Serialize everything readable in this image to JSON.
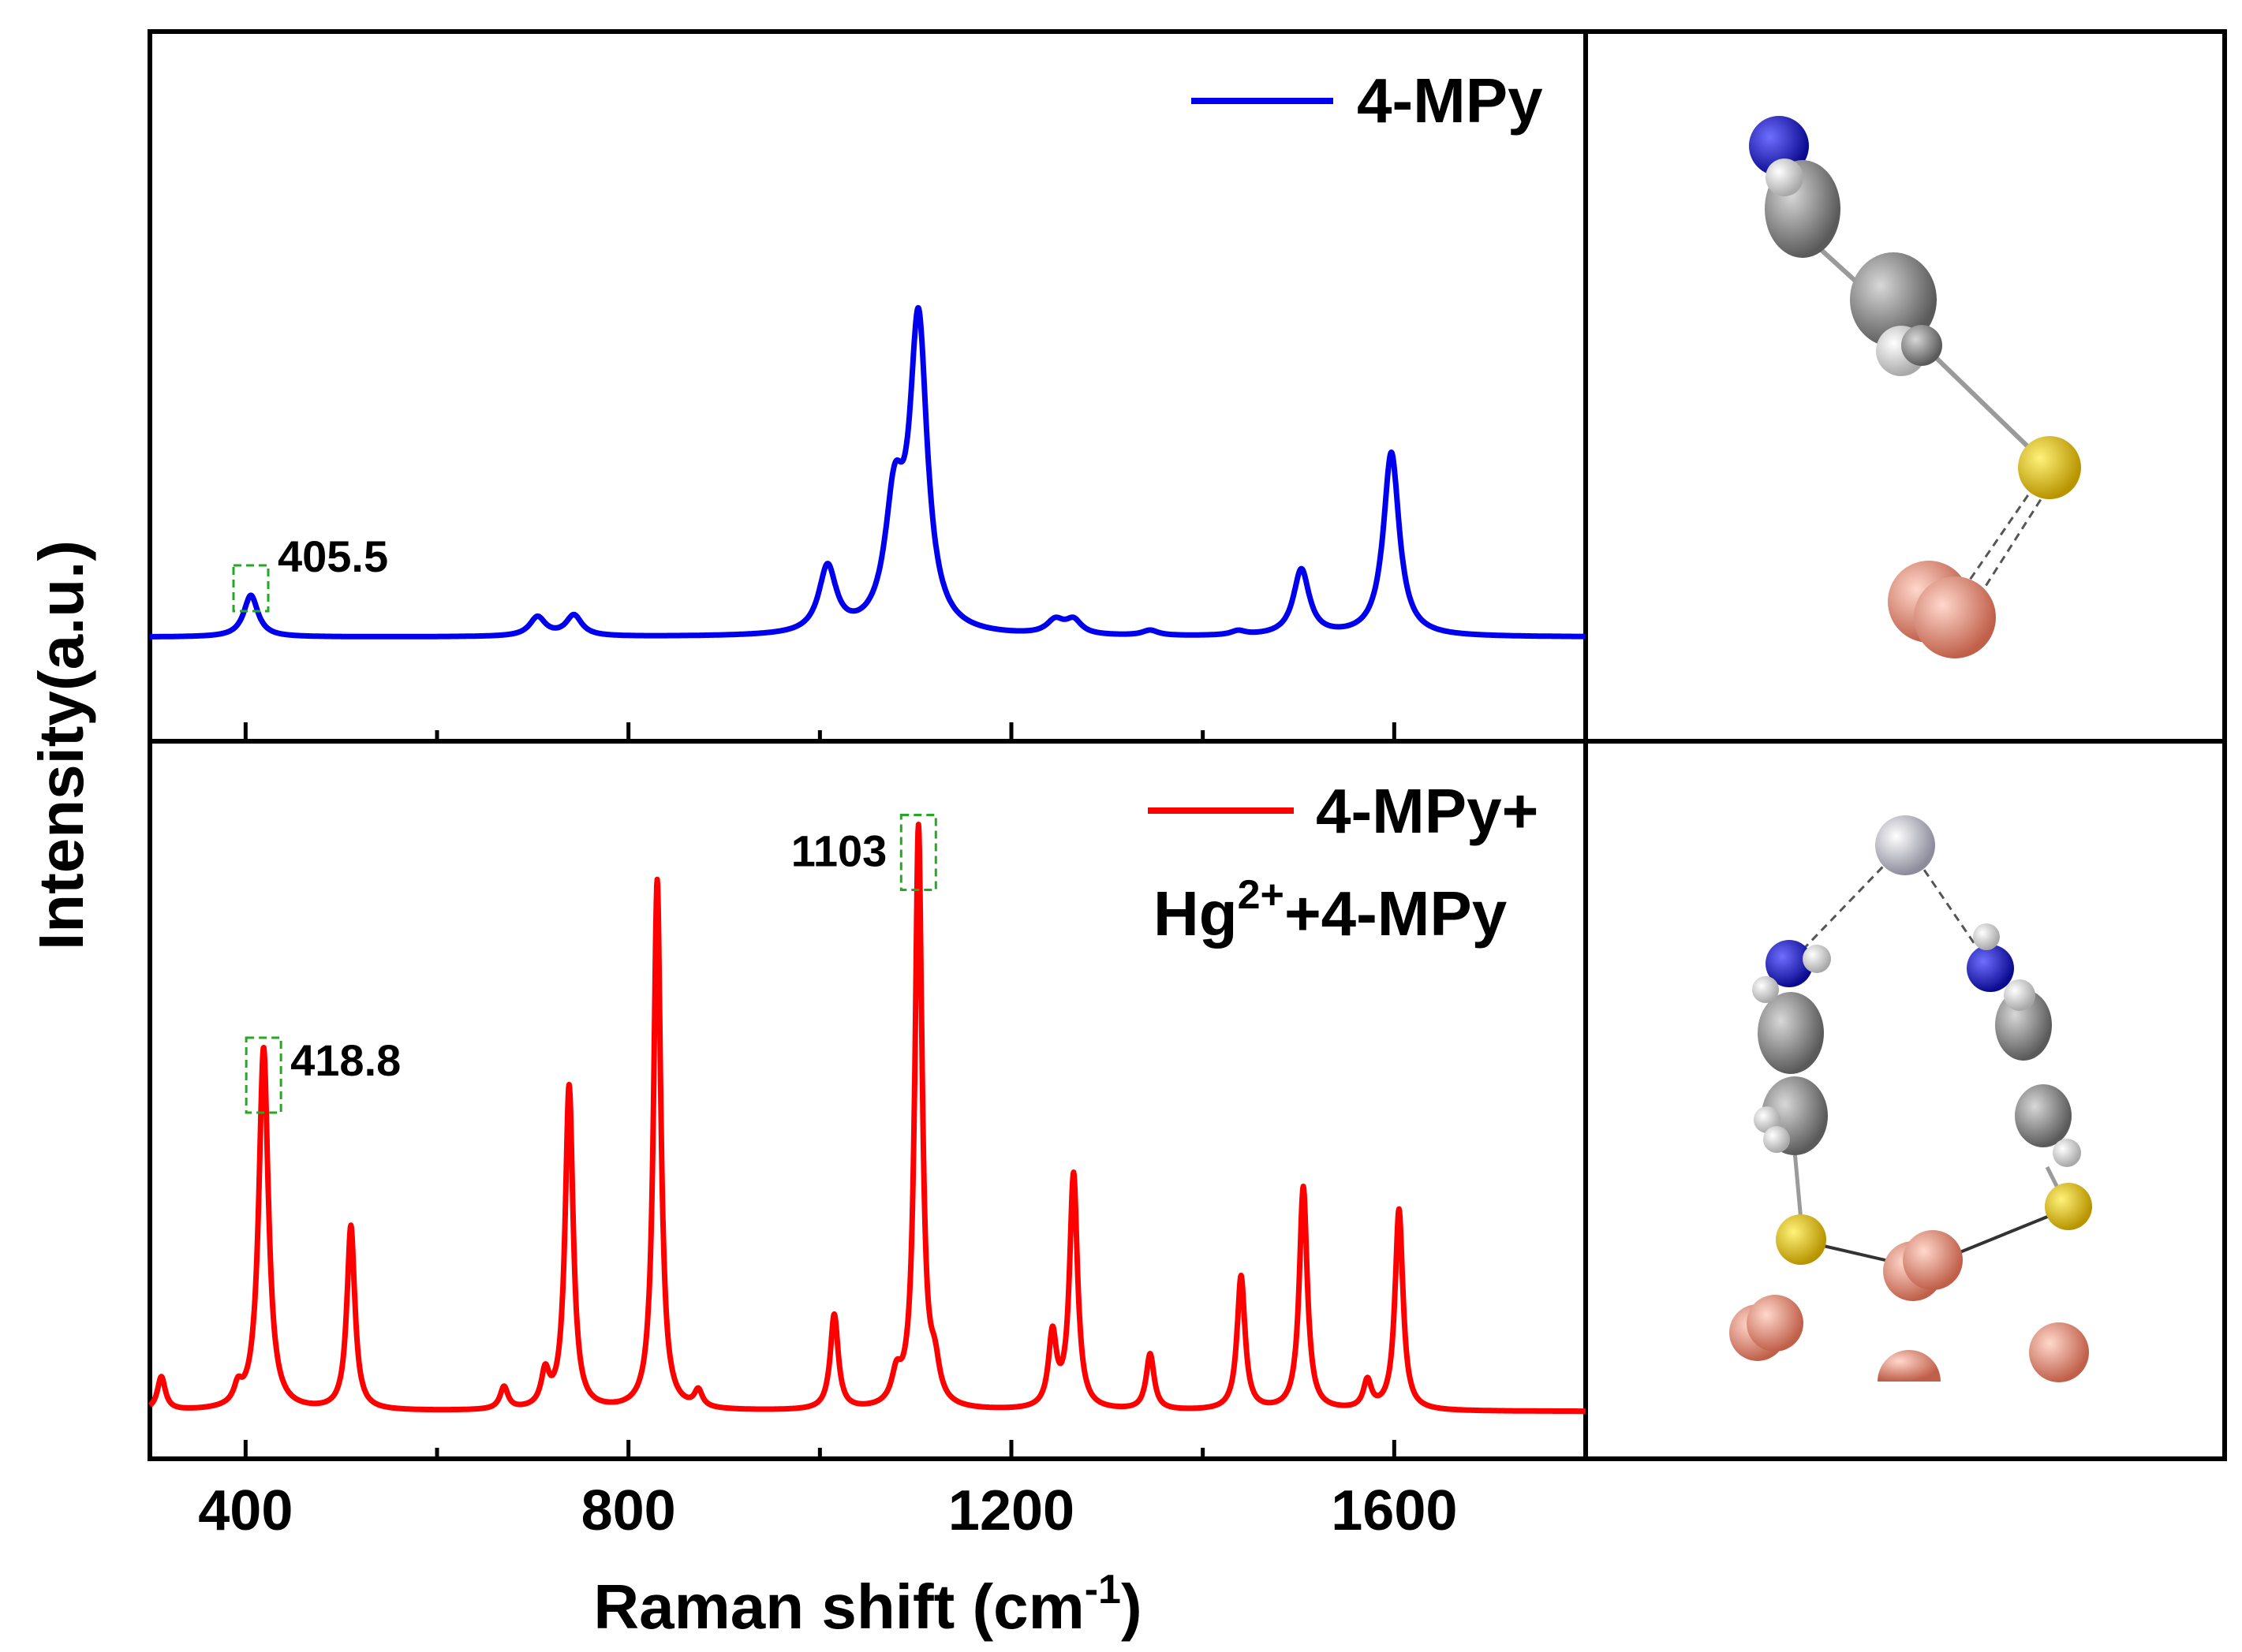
{
  "chart_data": {
    "type": "line",
    "xlabel_main": "Raman shift (cm",
    "xlabel_sup": "-1",
    "xlabel_close": ")",
    "ylabel": "Intensity(a.u.)",
    "xlim": [
      300,
      1800
    ],
    "xticks": [
      400,
      800,
      1200,
      1600
    ],
    "xtick_labels": [
      "400",
      "800",
      "1200",
      "1600"
    ],
    "series": [
      {
        "name": "4-MPy",
        "color": "#0000ee",
        "panel": "top",
        "peaks": [
          {
            "x": 405.5,
            "h": 0.12,
            "w": 9
          },
          {
            "x": 705,
            "h": 0.055,
            "w": 10
          },
          {
            "x": 743,
            "h": 0.06,
            "w": 10
          },
          {
            "x": 1008,
            "h": 0.19,
            "w": 11
          },
          {
            "x": 1078,
            "h": 0.35,
            "w": 12
          },
          {
            "x": 1103,
            "h": 0.88,
            "w": 11
          },
          {
            "x": 1246,
            "h": 0.04,
            "w": 11
          },
          {
            "x": 1265,
            "h": 0.04,
            "w": 10
          },
          {
            "x": 1345,
            "h": 0.015,
            "w": 10
          },
          {
            "x": 1437,
            "h": 0.012,
            "w": 9
          },
          {
            "x": 1503,
            "h": 0.19,
            "w": 10
          },
          {
            "x": 1597,
            "h": 0.53,
            "w": 10
          }
        ]
      },
      {
        "name": "4-MPy+Hg2++4-MPy",
        "color": "#ff0000",
        "panel": "bottom",
        "peaks": [
          {
            "x": 312,
            "h": 0.06,
            "w": 5
          },
          {
            "x": 392,
            "h": 0.03,
            "w": 5
          },
          {
            "x": 418.8,
            "h": 0.65,
            "w": 6
          },
          {
            "x": 510,
            "h": 0.33,
            "w": 5
          },
          {
            "x": 670,
            "h": 0.04,
            "w": 5
          },
          {
            "x": 713,
            "h": 0.06,
            "w": 5
          },
          {
            "x": 738,
            "h": 0.58,
            "w": 5
          },
          {
            "x": 830,
            "h": 0.95,
            "w": 4.5
          },
          {
            "x": 873,
            "h": 0.03,
            "w": 5
          },
          {
            "x": 1015,
            "h": 0.17,
            "w": 5
          },
          {
            "x": 1080,
            "h": 0.05,
            "w": 6
          },
          {
            "x": 1103,
            "h": 1.04,
            "w": 4.5
          },
          {
            "x": 1120,
            "h": 0.06,
            "w": 6
          },
          {
            "x": 1243,
            "h": 0.13,
            "w": 5
          },
          {
            "x": 1265,
            "h": 0.42,
            "w": 5
          },
          {
            "x": 1345,
            "h": 0.1,
            "w": 5
          },
          {
            "x": 1440,
            "h": 0.24,
            "w": 5
          },
          {
            "x": 1505,
            "h": 0.4,
            "w": 5
          },
          {
            "x": 1572,
            "h": 0.05,
            "w": 5
          },
          {
            "x": 1605,
            "h": 0.36,
            "w": 5
          }
        ]
      }
    ],
    "legend": [
      {
        "label": "4-MPy",
        "color": "#0000ee"
      },
      {
        "label_line1": "4-MPy+",
        "label_line2_main": "Hg",
        "label_line2_sup": "2+",
        "label_line2_rest": "+4-MPy",
        "color": "#ff0000"
      }
    ],
    "annotations": [
      {
        "text": "405.5",
        "x": 405.5,
        "panel": "top"
      },
      {
        "text": "418.8",
        "x": 418.8,
        "panel": "bottom"
      },
      {
        "text": "1103",
        "x": 1103,
        "panel": "bottom"
      }
    ]
  },
  "molecules": {
    "colors": {
      "N": "#1010c8",
      "H": "#e6e6e6",
      "C": "#8c8c8c",
      "S": "#f0c800",
      "Cu": "#e8907a",
      "Hg": "#c8c8d4"
    }
  }
}
